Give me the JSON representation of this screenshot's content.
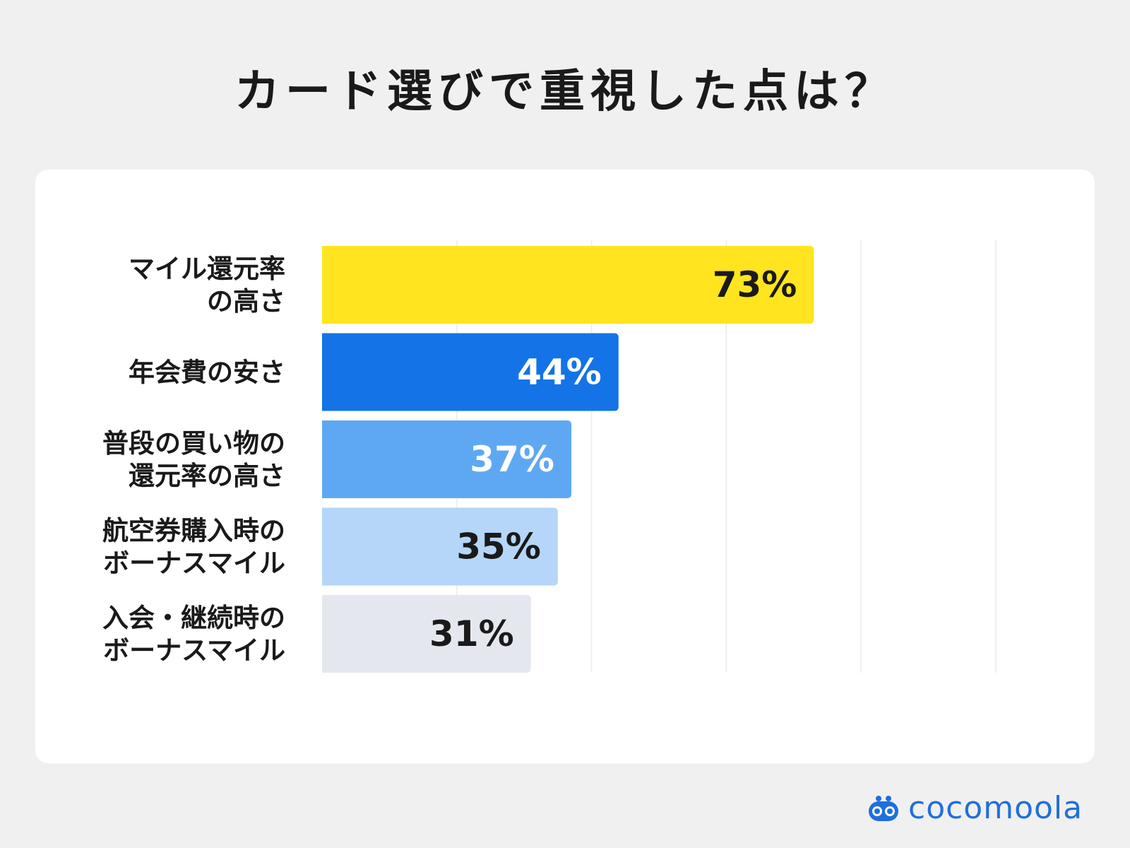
{
  "title": "カード選びで重視した点は？",
  "brand": {
    "name": "cocomoola",
    "icon": "cocomoola-logo-icon",
    "color": "#1f6fdc"
  },
  "chart_data": {
    "type": "bar",
    "orientation": "horizontal",
    "xlim": [
      0,
      100
    ],
    "grid": true,
    "categories": [
      [
        "マイル還元率",
        "の高さ"
      ],
      [
        "年会費の安さ"
      ],
      [
        "普段の買い物の",
        "還元率の高さ"
      ],
      [
        "航空券購入時の",
        "ボーナスマイル"
      ],
      [
        "入会・継続時の",
        "ボーナスマイル"
      ]
    ],
    "values": [
      73,
      44,
      37,
      35,
      31
    ],
    "value_labels": [
      "73%",
      "44%",
      "37%",
      "35%",
      "31%"
    ],
    "colors": [
      "#ffe41f",
      "#1473e6",
      "#5ea8f3",
      "#b5d6f8",
      "#e4e8ee"
    ],
    "label_colors": [
      "#1a1a1a",
      "#ffffff",
      "#ffffff",
      "#1a1a1a",
      "#1a1a1a"
    ]
  }
}
